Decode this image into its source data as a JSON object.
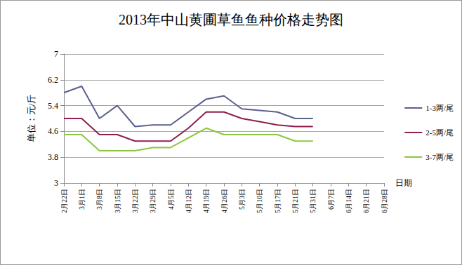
{
  "chart_data": {
    "type": "line",
    "title": "2013年中山黄圃草鱼鱼种价格走势图",
    "ylabel": "单位：元/斤",
    "xlabel": "日期",
    "categories": [
      "2月22日",
      "3月1日",
      "3月8日",
      "3月15日",
      "3月22日",
      "3月29日",
      "4月5日",
      "4月12日",
      "4月19日",
      "4月26日",
      "5月3日",
      "5月10日",
      "5月17日",
      "5月21日",
      "5月31日",
      "6月7日",
      "6月14日",
      "6月21日",
      "6月28日"
    ],
    "series": [
      {
        "name": "1-3两/尾",
        "color": "#5c5f8e",
        "values": [
          5.8,
          6.0,
          5.0,
          5.4,
          4.75,
          4.8,
          4.8,
          5.2,
          5.6,
          5.7,
          5.3,
          5.25,
          5.2,
          5.0,
          5.0,
          null,
          null,
          null,
          null
        ]
      },
      {
        "name": "2-5两/尾",
        "color": "#8e1f4f",
        "values": [
          5.0,
          5.0,
          4.5,
          4.5,
          4.3,
          4.3,
          4.3,
          4.7,
          5.2,
          5.2,
          5.0,
          4.9,
          4.8,
          4.75,
          4.75,
          null,
          null,
          null,
          null
        ]
      },
      {
        "name": "3-7两/尾",
        "color": "#8dc63f",
        "values": [
          4.5,
          4.5,
          4.0,
          4.0,
          4.0,
          4.1,
          4.1,
          4.4,
          4.7,
          4.5,
          4.5,
          4.5,
          4.5,
          4.3,
          4.3,
          null,
          null,
          null,
          null
        ]
      }
    ],
    "ylim": [
      3,
      7
    ],
    "yticks": [
      3,
      3.8,
      4.6,
      5.4,
      6.2,
      7
    ],
    "grid": true,
    "legend": "right",
    "marker": "none",
    "line_style": "solid"
  }
}
